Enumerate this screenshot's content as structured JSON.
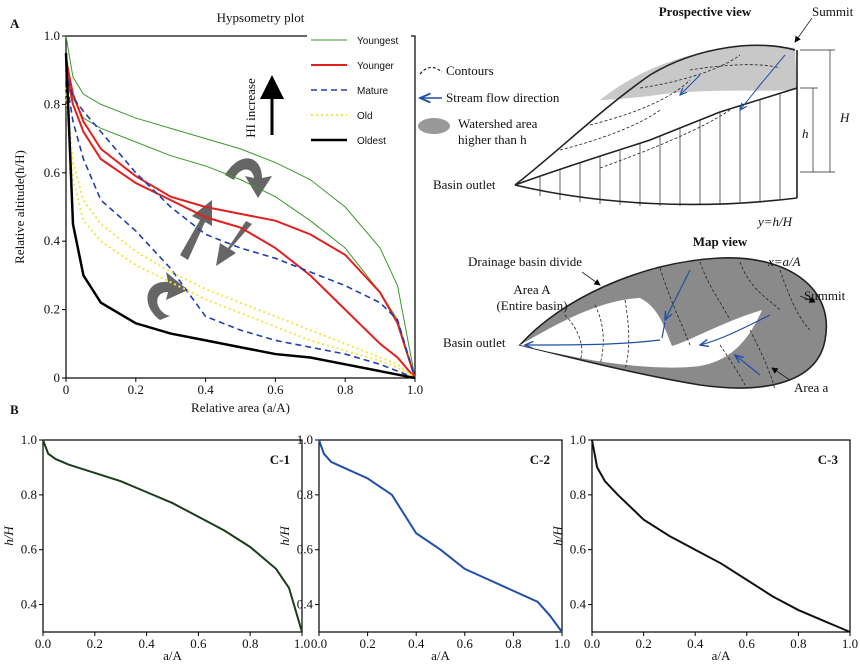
{
  "chart_data": [
    {
      "type": "line",
      "title": "Hypsometry plot",
      "xlabel": "Relative area (a/A)",
      "ylabel": "Relative altitude(h/H)",
      "x": [
        0,
        0.02,
        0.05,
        0.1,
        0.2,
        0.3,
        0.4,
        0.5,
        0.6,
        0.7,
        0.8,
        0.9,
        0.95,
        1.0
      ],
      "xlim": [
        0,
        1
      ],
      "ylim": [
        0,
        1
      ],
      "xticks": [
        0,
        0.2,
        0.4,
        0.6,
        0.8,
        {
          "value": 1,
          "label": "1.0"
        }
      ],
      "yticks": [
        0,
        0.2,
        0.4,
        0.6,
        0.8,
        {
          "value": 1,
          "label": "1.0"
        }
      ],
      "legend": "upper right",
      "series": [
        {
          "name": "Youngest",
          "color": "#3a9a2a",
          "style": "solid",
          "width": 1,
          "curves": [
            [
              1.0,
              0.88,
              0.83,
              0.8,
              0.76,
              0.73,
              0.7,
              0.67,
              0.63,
              0.58,
              0.5,
              0.38,
              0.27,
              0
            ],
            [
              0.95,
              0.82,
              0.76,
              0.73,
              0.69,
              0.65,
              0.62,
              0.58,
              0.53,
              0.46,
              0.38,
              0.25,
              0.17,
              0
            ]
          ]
        },
        {
          "name": "Younger",
          "color": "#e0201e",
          "style": "solid",
          "width": 2,
          "curves": [
            [
              0.93,
              0.83,
              0.75,
              0.67,
              0.59,
              0.53,
              0.5,
              0.48,
              0.46,
              0.42,
              0.36,
              0.25,
              0.16,
              0
            ],
            [
              0.9,
              0.8,
              0.72,
              0.64,
              0.57,
              0.52,
              0.47,
              0.44,
              0.38,
              0.3,
              0.2,
              0.1,
              0.06,
              0
            ]
          ]
        },
        {
          "name": "Mature",
          "color": "#1f3fb0",
          "style": "dashed",
          "width": 1.6,
          "curves": [
            [
              0.9,
              0.82,
              0.78,
              0.72,
              0.6,
              0.5,
              0.42,
              0.38,
              0.35,
              0.31,
              0.27,
              0.22,
              0.17,
              0
            ],
            [
              0.88,
              0.75,
              0.64,
              0.52,
              0.43,
              0.32,
              0.18,
              0.14,
              0.11,
              0.09,
              0.07,
              0.04,
              0.02,
              0
            ]
          ]
        },
        {
          "name": "Old",
          "color": "#f2e64a",
          "style": "dotted",
          "width": 2,
          "curves": [
            [
              0.85,
              0.63,
              0.52,
              0.45,
              0.37,
              0.31,
              0.26,
              0.22,
              0.18,
              0.14,
              0.1,
              0.06,
              0.04,
              0
            ],
            [
              0.83,
              0.58,
              0.46,
              0.4,
              0.33,
              0.28,
              0.23,
              0.19,
              0.15,
              0.11,
              0.08,
              0.05,
              0.03,
              0
            ]
          ]
        },
        {
          "name": "Oldest",
          "color": "#000000",
          "style": "solid",
          "width": 2.5,
          "curves": [
            [
              0.95,
              0.45,
              0.3,
              0.22,
              0.16,
              0.13,
              0.11,
              0.09,
              0.07,
              0.06,
              0.04,
              0.02,
              0.01,
              0
            ]
          ]
        }
      ]
    },
    {
      "type": "line",
      "label": "C-1",
      "xlabel": "a/A",
      "ylabel": "h/H",
      "x": [
        0,
        0.02,
        0.05,
        0.1,
        0.2,
        0.3,
        0.4,
        0.5,
        0.6,
        0.7,
        0.8,
        0.9,
        0.95,
        1.0
      ],
      "xlim": [
        0,
        1
      ],
      "ylim": [
        0.3,
        1
      ],
      "xticks": [
        {
          "value": 0,
          "label": "0.0"
        },
        0.2,
        0.4,
        0.6,
        0.8,
        {
          "value": 1,
          "label": "1.0"
        }
      ],
      "yticks": [
        0.4,
        0.6,
        0.8,
        {
          "value": 1,
          "label": "1.0"
        }
      ],
      "series": [
        {
          "color": "#1b3d1b",
          "style": "solid",
          "width": 2,
          "curves": [
            [
              1.0,
              0.95,
              0.93,
              0.91,
              0.88,
              0.85,
              0.81,
              0.77,
              0.72,
              0.67,
              0.61,
              0.53,
              0.46,
              0.3
            ]
          ]
        }
      ]
    },
    {
      "type": "line",
      "label": "C-2",
      "xlabel": "a/A",
      "ylabel": "h/H",
      "x": [
        0,
        0.02,
        0.05,
        0.1,
        0.2,
        0.3,
        0.4,
        0.5,
        0.6,
        0.7,
        0.8,
        0.9,
        0.95,
        1.0
      ],
      "xlim": [
        0,
        1
      ],
      "ylim": [
        0.3,
        1
      ],
      "xticks": [
        {
          "value": 0,
          "label": "0.0"
        },
        0.2,
        0.4,
        0.6,
        0.8,
        {
          "value": 1,
          "label": "1.0"
        }
      ],
      "yticks": [
        0.4,
        0.6,
        0.8,
        {
          "value": 1,
          "label": "1.0"
        }
      ],
      "series": [
        {
          "color": "#1f4fa8",
          "style": "solid",
          "width": 2,
          "curves": [
            [
              1.0,
              0.95,
              0.92,
              0.9,
              0.86,
              0.8,
              0.66,
              0.6,
              0.53,
              0.49,
              0.45,
              0.41,
              0.36,
              0.3
            ]
          ]
        }
      ]
    },
    {
      "type": "line",
      "label": "C-3",
      "xlabel": "a/A",
      "ylabel": "h/H",
      "x": [
        0,
        0.02,
        0.05,
        0.1,
        0.2,
        0.3,
        0.4,
        0.5,
        0.6,
        0.7,
        0.8,
        0.9,
        0.95,
        1.0
      ],
      "xlim": [
        0,
        1
      ],
      "ylim": [
        0.3,
        1
      ],
      "xticks": [
        {
          "value": 0,
          "label": "0.0"
        },
        0.2,
        0.4,
        0.6,
        0.8,
        {
          "value": 1,
          "label": "1.0"
        }
      ],
      "yticks": [
        0.4,
        0.6,
        0.8,
        {
          "value": 1,
          "label": "1.0"
        }
      ],
      "series": [
        {
          "color": "#111111",
          "style": "solid",
          "width": 2,
          "curves": [
            [
              1.0,
              0.9,
              0.85,
              0.8,
              0.71,
              0.65,
              0.6,
              0.55,
              0.49,
              0.43,
              0.38,
              0.34,
              0.32,
              0.3
            ]
          ]
        }
      ]
    }
  ],
  "diagram": {
    "panel_a": "A",
    "panel_b": "B",
    "hi_increase": "HI increase",
    "key": {
      "contours": "Contours",
      "stream": "Stream flow direction",
      "watershed": [
        "Watershed area",
        "higher than h"
      ]
    },
    "prospective": {
      "title": "Prospective view",
      "summit": "Summit",
      "big_h": "H",
      "small_h": "h",
      "outlet": "Basin outlet",
      "y_def": "y=h/H"
    },
    "map": {
      "title": "Map view",
      "x_def": "x=a/A",
      "divide": "Drainage basin divide",
      "area_a_big": [
        "Area A",
        "(Entire basin)"
      ],
      "summit": "Summit",
      "outlet": "Basin outlet",
      "area_a": "Area a"
    }
  }
}
